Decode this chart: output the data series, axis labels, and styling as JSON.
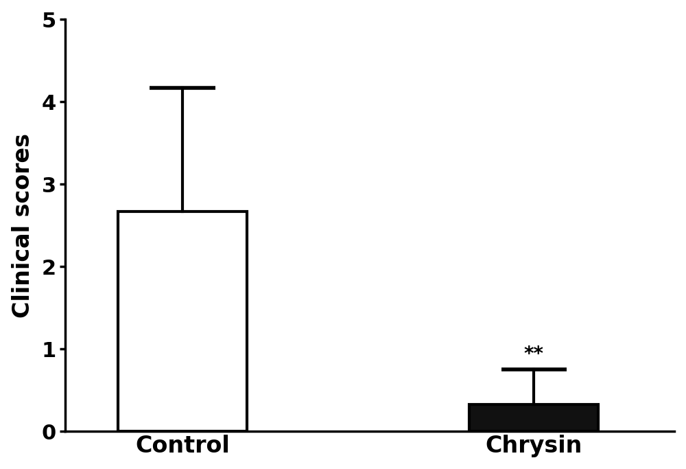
{
  "categories": [
    "Control",
    "Chrysin"
  ],
  "values": [
    2.67,
    0.33
  ],
  "error_upper": [
    1.5,
    0.42
  ],
  "bar_colors": [
    "#ffffff",
    "#111111"
  ],
  "bar_edge_colors": [
    "#000000",
    "#000000"
  ],
  "bar_edge_width": 3.0,
  "ylabel": "Clinical scores",
  "ylim": [
    0,
    5
  ],
  "yticks": [
    0,
    1,
    2,
    3,
    4,
    5
  ],
  "significance": [
    "",
    "**"
  ],
  "sig_fontsize": 20,
  "label_fontsize": 24,
  "tick_fontsize": 22,
  "bar_width": 0.55,
  "capsize": 14,
  "error_linewidth": 3.0,
  "cap_thickness": 4.0,
  "background_color": "#ffffff",
  "axis_linewidth": 2.5,
  "x_positions": [
    1.0,
    2.5
  ]
}
